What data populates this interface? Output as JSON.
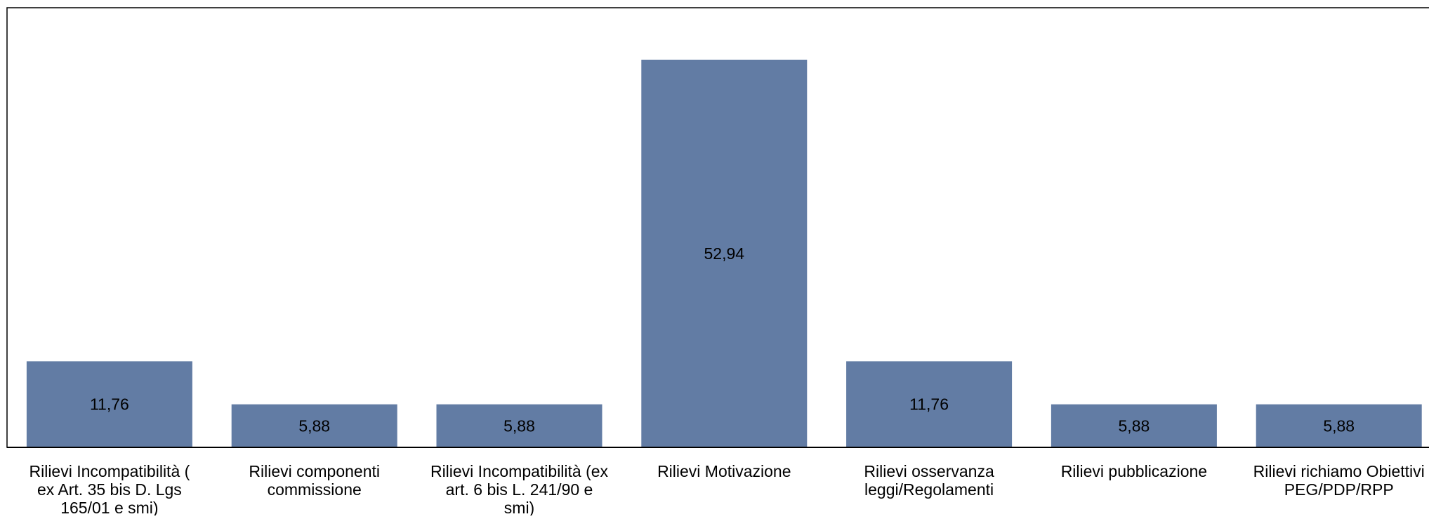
{
  "chart_data": {
    "type": "bar",
    "title": "",
    "xlabel": "",
    "ylabel": "",
    "ylim": [
      0,
      60
    ],
    "grid": false,
    "legend": "none",
    "bar_color": "#627ca4",
    "categories": [
      [
        "Rilievi Incompatibilità (",
        "ex Art. 35 bis D. Lgs",
        "165/01 e smi)"
      ],
      [
        "Rilievi componenti",
        "commissione"
      ],
      [
        "Rilievi Incompatibilità (ex",
        "art. 6 bis L. 241/90 e",
        "smi)"
      ],
      [
        "Rilievi Motivazione"
      ],
      [
        "Rilievi osservanza",
        "leggi/Regolamenti"
      ],
      [
        "Rilievi pubblicazione"
      ],
      [
        "Rilievi richiamo Obiettivi",
        "PEG/PDP/RPP"
      ]
    ],
    "values": [
      11.76,
      5.88,
      5.88,
      52.94,
      11.76,
      5.88,
      5.88
    ],
    "value_labels": [
      "11,76",
      "5,88",
      "5,88",
      "52,94",
      "11,76",
      "5,88",
      "5,88"
    ]
  }
}
